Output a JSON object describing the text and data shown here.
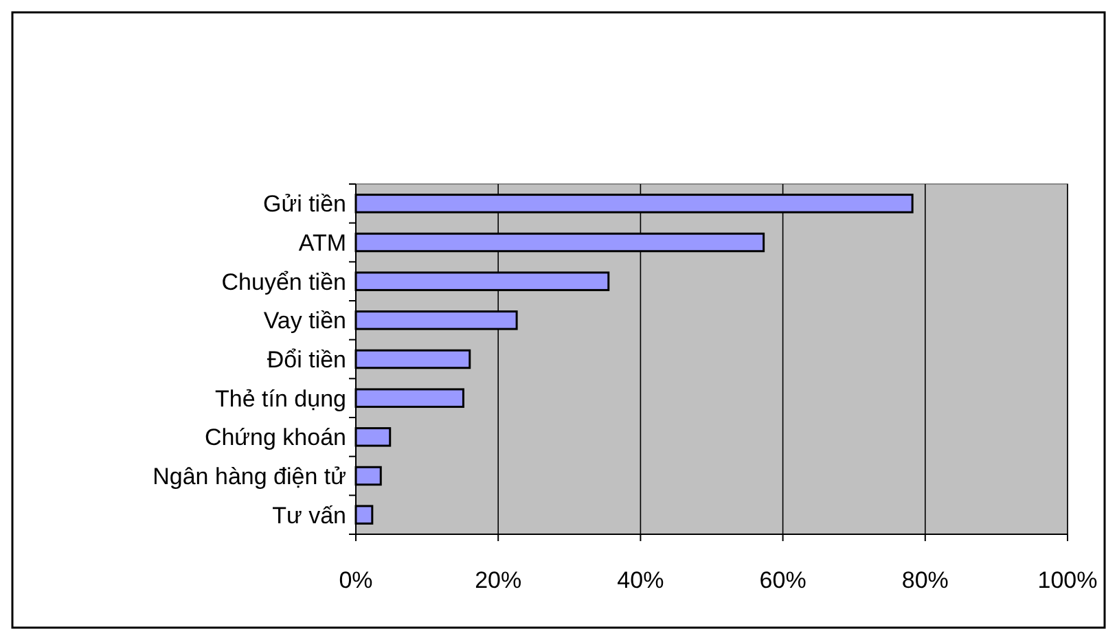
{
  "chart_data": {
    "type": "bar",
    "orientation": "horizontal",
    "categories": [
      "Gửi tiền",
      "ATM",
      "Chuyển tiền",
      "Vay tiền",
      "Đổi tiền",
      "Thẻ tín dụng",
      "Chứng khoán",
      "Ngân hàng điện tử",
      "Tư vấn"
    ],
    "values": [
      78.2,
      57.3,
      35.5,
      22.6,
      16,
      15.1,
      4.8,
      3.5,
      2.3
    ],
    "color": "#9999ff",
    "xlim": [
      0,
      100
    ],
    "xticks": [
      {
        "value": 0,
        "label": "0%"
      },
      {
        "value": 20,
        "label": "20%"
      },
      {
        "value": 40,
        "label": "40%"
      },
      {
        "value": 60,
        "label": "60%"
      },
      {
        "value": 80,
        "label": "80%"
      },
      {
        "value": 100,
        "label": "100%"
      }
    ],
    "grid": "x"
  }
}
